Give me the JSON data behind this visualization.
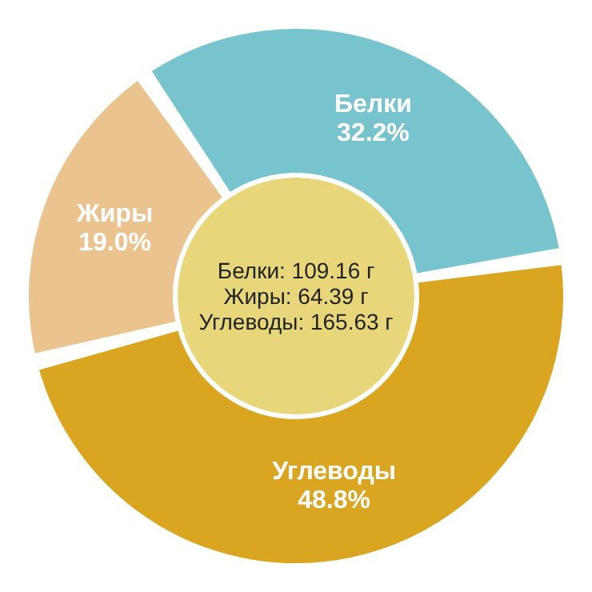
{
  "chart_data": {
    "type": "donut",
    "categories": [
      "Белки",
      "Жиры",
      "Углеводы"
    ],
    "values": [
      32.2,
      19.0,
      48.8
    ],
    "colors": [
      "#78c4ce",
      "#ebc38f",
      "#daa520"
    ],
    "value_labels": [
      "32.2%",
      "19.0%",
      "48.8%"
    ],
    "annotations": [
      "Белки: 109.16 г",
      "Жиры: 64.39 г",
      "Углеводы: 165.63 г"
    ]
  }
}
